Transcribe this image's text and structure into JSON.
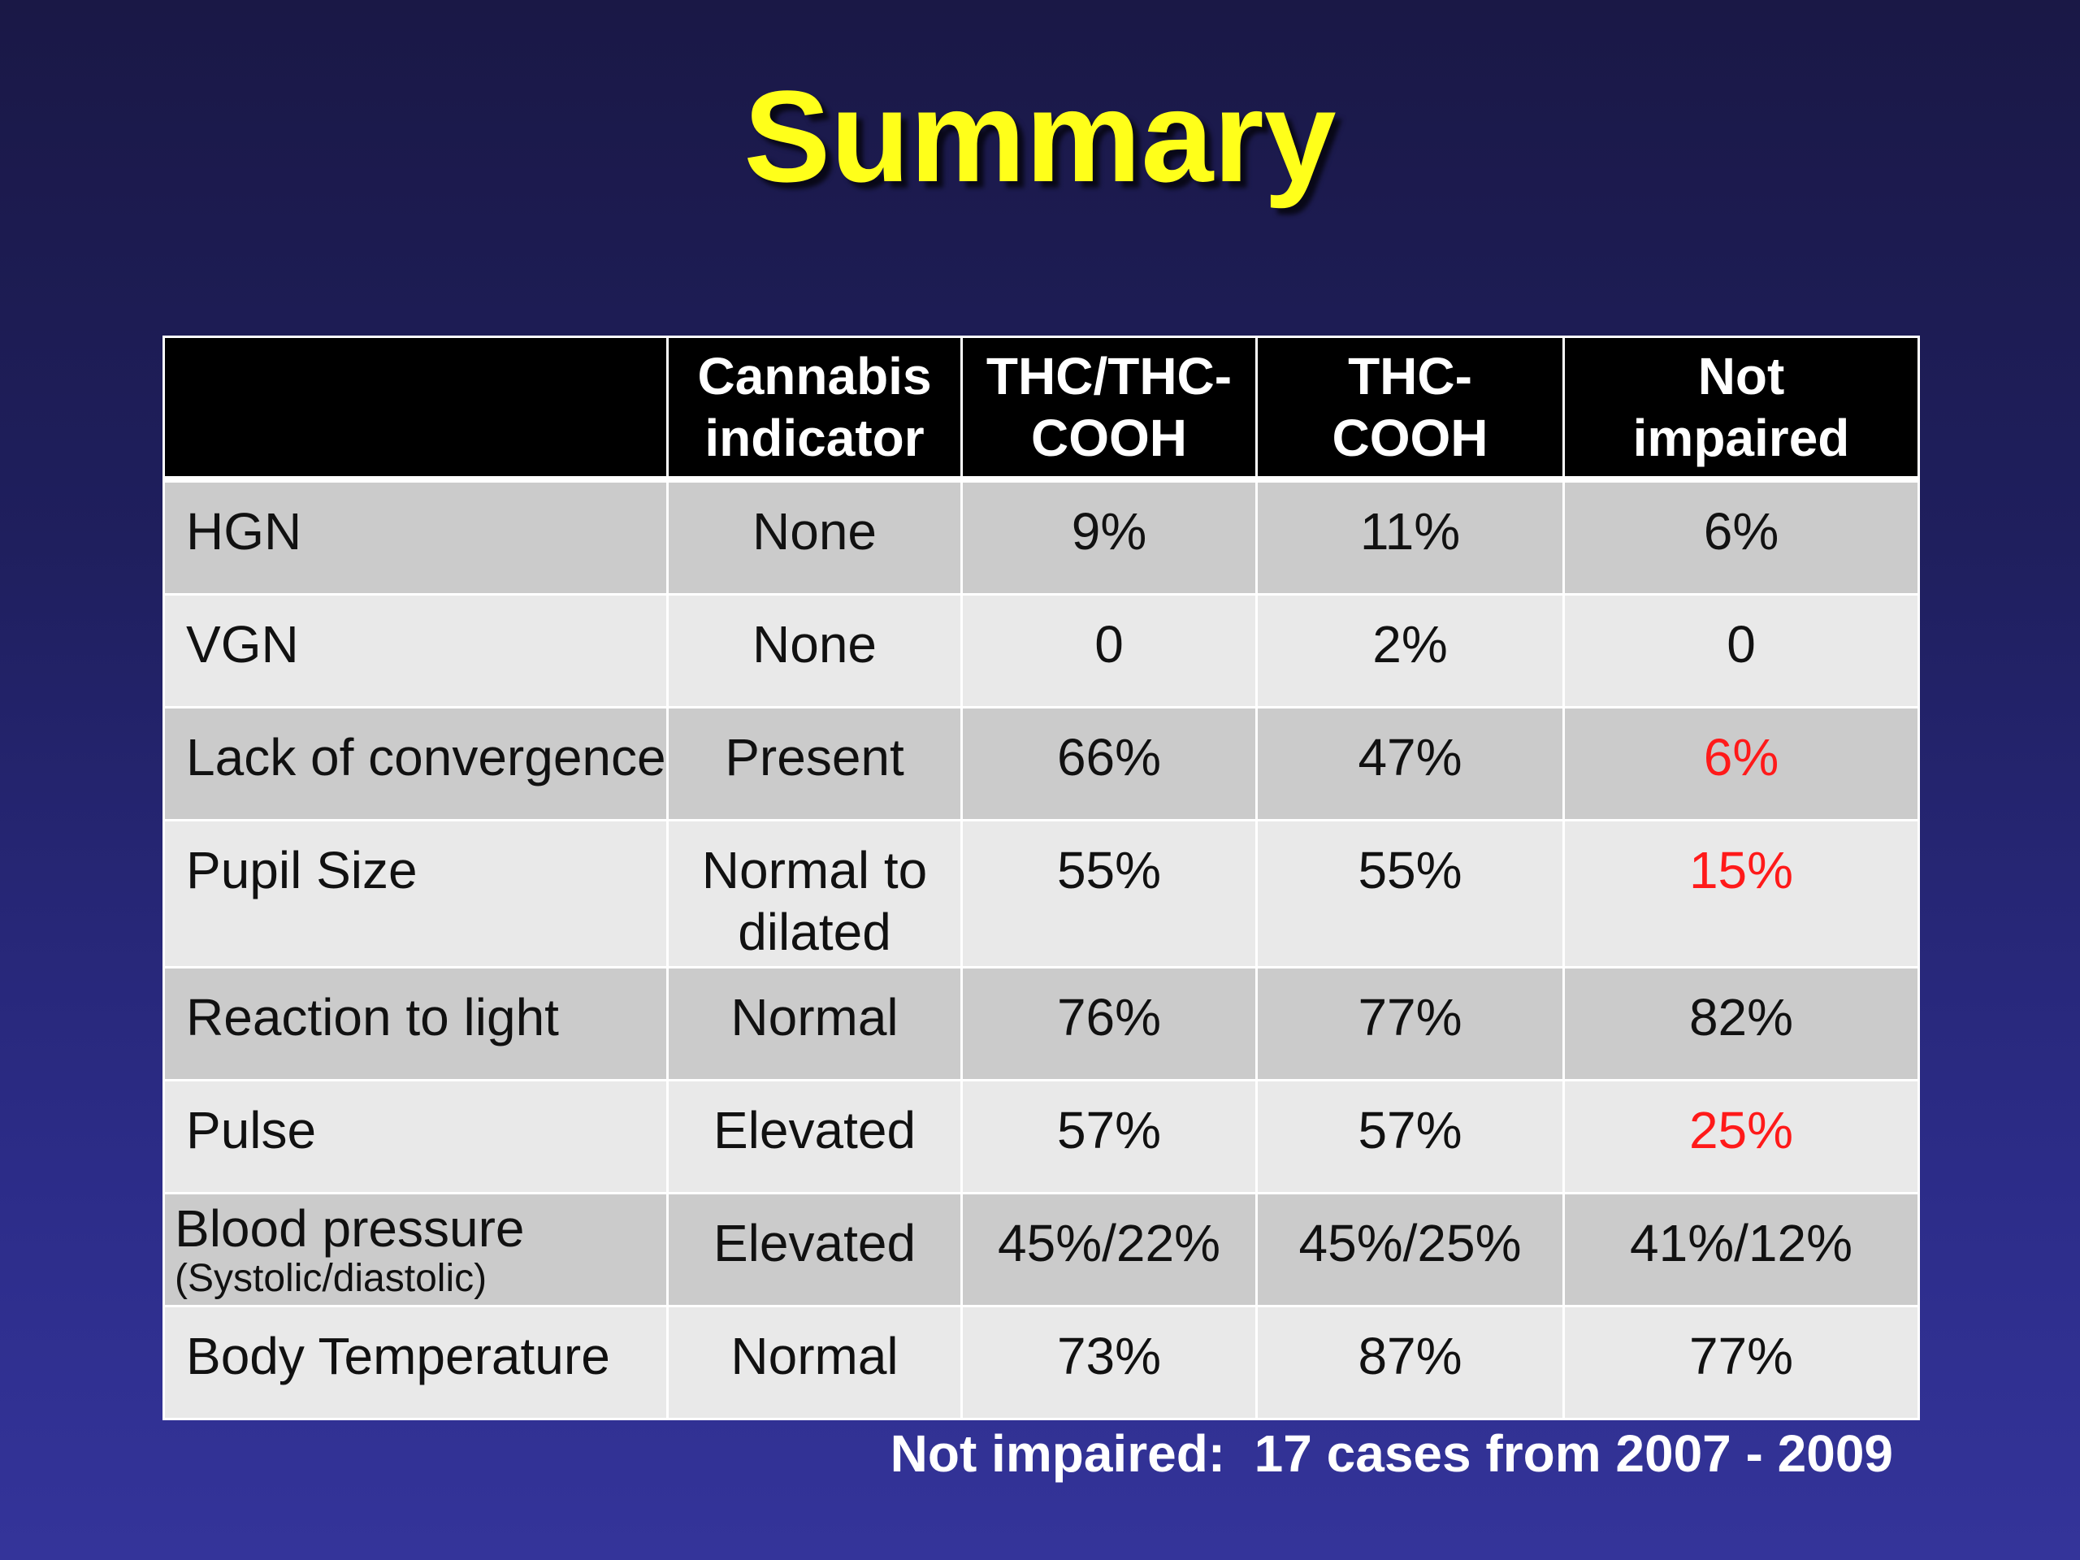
{
  "title": "Summary",
  "table": {
    "headers": [
      "",
      "Cannabis indicator",
      "THC/THC-COOH",
      "THC-COOH",
      "Not impaired"
    ],
    "header_lines": [
      [],
      [
        "Cannabis",
        "indicator"
      ],
      [
        "THC/THC-",
        "COOH"
      ],
      [
        "THC-",
        "COOH"
      ],
      [
        "Not",
        "impaired"
      ]
    ],
    "rows": [
      {
        "label": "HGN",
        "indicator": "None",
        "thc_thccooh": "9%",
        "thccooh": "11%",
        "not_impaired": "6%"
      },
      {
        "label": "VGN",
        "indicator": "None",
        "thc_thccooh": "0",
        "thccooh": "2%",
        "not_impaired": "0"
      },
      {
        "label": "Lack of convergence",
        "indicator": "Present",
        "thc_thccooh": "66%",
        "thccooh": "47%",
        "not_impaired": "6%"
      },
      {
        "label": "Pupil Size",
        "indicator_lines": [
          "Normal to",
          "dilated"
        ],
        "thc_thccooh": "55%",
        "thccooh": "55%",
        "not_impaired": "15%"
      },
      {
        "label": "Reaction to light",
        "indicator": "Normal",
        "thc_thccooh": "76%",
        "thccooh": "77%",
        "not_impaired": "82%"
      },
      {
        "label": "Pulse",
        "indicator": "Elevated",
        "thc_thccooh": "57%",
        "thccooh": "57%",
        "not_impaired": "25%"
      },
      {
        "label": "Blood pressure",
        "sublabel": "(Systolic/diastolic)",
        "indicator": "Elevated",
        "thc_thccooh": "45%/22%",
        "thccooh": "45%/25%",
        "not_impaired": "41%/12%"
      },
      {
        "label": "Body Temperature",
        "indicator": "Normal",
        "thc_thccooh": "73%",
        "thccooh": "87%",
        "not_impaired": "77%"
      }
    ]
  },
  "highlight_color": "#ff1a1a",
  "footnote": "Not impaired:  17 cases from 2007 - 2009"
}
